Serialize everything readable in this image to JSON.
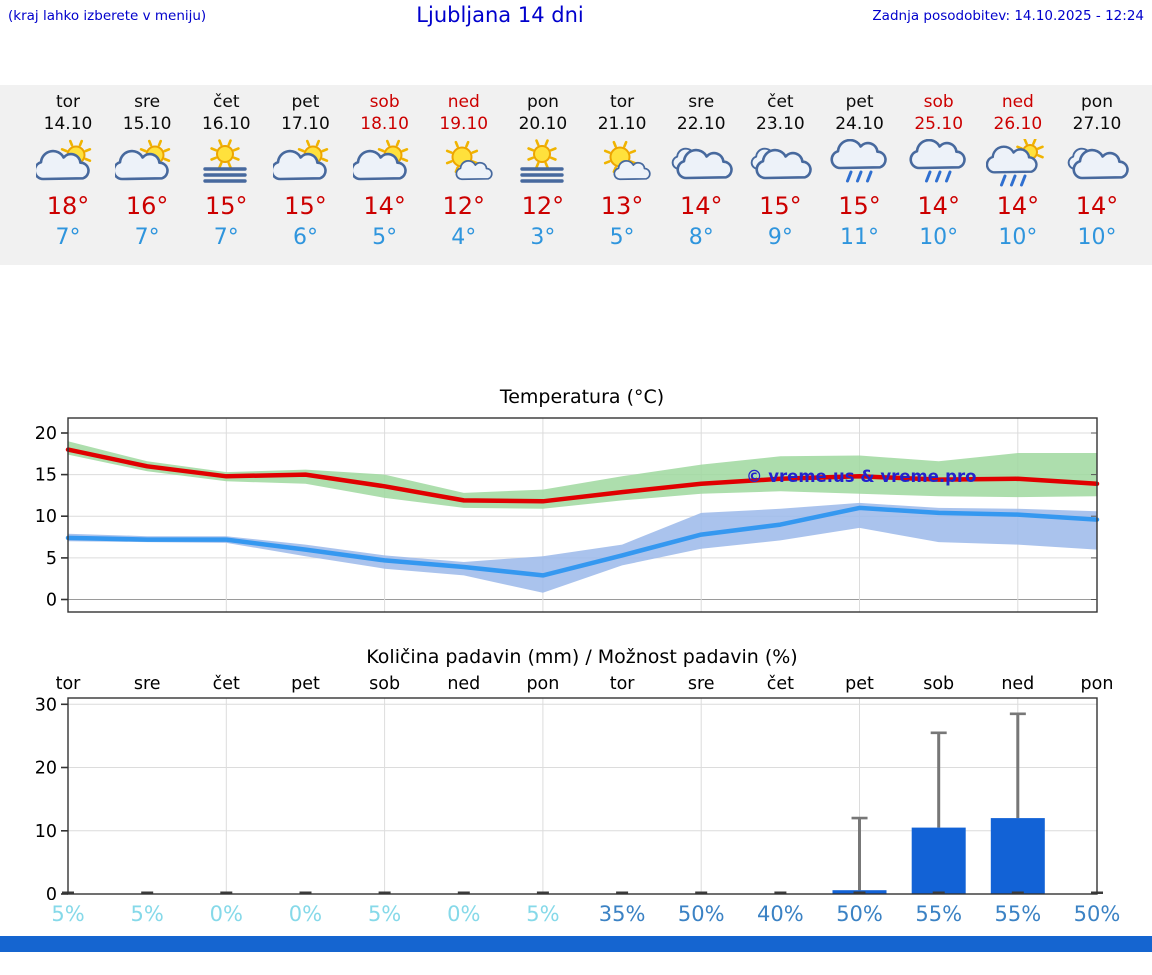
{
  "header": {
    "menu_note": "(kraj lahko izberete v meniju)",
    "title": "Ljubljana 14 dni",
    "last_update": "Zadnja posodobitev: 14.10.2025 - 12:24"
  },
  "watermark": "© vreme.us & vreme.pro",
  "colors": {
    "accent_blue": "#0000cc",
    "weekday_text": "#0a0a0a",
    "weekend_text": "#cc0000",
    "temp_high": "#cc0000",
    "temp_low": "#2f95dd",
    "strip_bg": "#f1f1f1",
    "max_line": "#e00000",
    "max_band": "#9fd89f",
    "min_line": "#3598f0",
    "min_band": "#9bb9ea",
    "bar_blue": "#1262d6",
    "whisker": "#777777",
    "prob_low": "#86d9e9",
    "prob_high": "#3b82c4",
    "footer_bar": "#1565d0",
    "watermark_blue": "#2323cc"
  },
  "forecast": {
    "days": [
      {
        "day": "tor",
        "date": "14.10",
        "weekend": false,
        "icon": "sun-cloud",
        "high": "18°",
        "low": "7°"
      },
      {
        "day": "sre",
        "date": "15.10",
        "weekend": false,
        "icon": "sun-cloud",
        "high": "16°",
        "low": "7°"
      },
      {
        "day": "čet",
        "date": "16.10",
        "weekend": false,
        "icon": "fog-sun",
        "high": "15°",
        "low": "7°"
      },
      {
        "day": "pet",
        "date": "17.10",
        "weekend": false,
        "icon": "sun-cloud",
        "high": "15°",
        "low": "6°"
      },
      {
        "day": "sob",
        "date": "18.10",
        "weekend": true,
        "icon": "sun-cloud",
        "high": "14°",
        "low": "5°"
      },
      {
        "day": "ned",
        "date": "19.10",
        "weekend": true,
        "icon": "sun-small-cloud",
        "high": "12°",
        "low": "4°"
      },
      {
        "day": "pon",
        "date": "20.10",
        "weekend": false,
        "icon": "fog-sun",
        "high": "12°",
        "low": "3°"
      },
      {
        "day": "tor",
        "date": "21.10",
        "weekend": false,
        "icon": "sun-small-cloud",
        "high": "13°",
        "low": "5°"
      },
      {
        "day": "sre",
        "date": "22.10",
        "weekend": false,
        "icon": "cloud",
        "high": "14°",
        "low": "8°"
      },
      {
        "day": "čet",
        "date": "23.10",
        "weekend": false,
        "icon": "cloud",
        "high": "15°",
        "low": "9°"
      },
      {
        "day": "pet",
        "date": "24.10",
        "weekend": false,
        "icon": "rain",
        "high": "15°",
        "low": "11°"
      },
      {
        "day": "sob",
        "date": "25.10",
        "weekend": true,
        "icon": "rain",
        "high": "14°",
        "low": "10°"
      },
      {
        "day": "ned",
        "date": "26.10",
        "weekend": true,
        "icon": "sun-rain",
        "high": "14°",
        "low": "10°"
      },
      {
        "day": "pon",
        "date": "27.10",
        "weekend": false,
        "icon": "cloud",
        "high": "14°",
        "low": "10°"
      }
    ]
  },
  "chart_data": [
    {
      "type": "line",
      "title": "Temperatura (°C)",
      "x": [
        "tor 14.10",
        "sre 15.10",
        "čet 16.10",
        "pet 17.10",
        "sob 18.10",
        "ned 19.10",
        "pon 20.10",
        "tor 21.10",
        "sre 22.10",
        "čet 23.10",
        "pet 24.10",
        "sob 25.10",
        "ned 26.10",
        "pon 27.10"
      ],
      "ylim": [
        -1.5,
        21.8
      ],
      "yticks": [
        0,
        5,
        10,
        15,
        20
      ],
      "grid": true,
      "legend": "none",
      "series": [
        {
          "name": "max temperature",
          "color_key": "max_line",
          "values": [
            18,
            16,
            14.8,
            15,
            13.6,
            11.9,
            11.8,
            12.9,
            13.9,
            14.5,
            14.8,
            14.4,
            14.5,
            13.9
          ]
        },
        {
          "name": "min temperature",
          "color_key": "min_line",
          "values": [
            7.4,
            7.2,
            7.2,
            6,
            4.7,
            3.9,
            2.9,
            5.3,
            7.8,
            9,
            11,
            10.4,
            10.2,
            9.6
          ]
        }
      ],
      "bands": [
        {
          "name": "max temperature range",
          "color_key": "max_band",
          "upper": [
            19,
            16.6,
            15.3,
            15.6,
            15,
            12.8,
            13.2,
            14.8,
            16.2,
            17.2,
            17.3,
            16.6,
            17.6,
            17.6
          ],
          "lower": [
            17.4,
            15.4,
            14.2,
            13.9,
            12.2,
            11,
            10.9,
            11.9,
            12.7,
            13,
            12.7,
            12.4,
            12.3,
            12.4
          ]
        },
        {
          "name": "min temperature range",
          "color_key": "min_band",
          "upper": [
            7.9,
            7.6,
            7.6,
            6.6,
            5.3,
            4.5,
            5.2,
            6.6,
            10.4,
            10.9,
            11.6,
            11,
            10.9,
            10.6
          ],
          "lower": [
            7,
            6.9,
            6.8,
            5.2,
            3.7,
            2.9,
            0.8,
            4.1,
            6.1,
            7.1,
            8.6,
            6.9,
            6.6,
            6
          ]
        }
      ]
    },
    {
      "type": "bar",
      "title": "Količina padavin (mm) / Možnost padavin (%)",
      "categories": [
        "tor",
        "sre",
        "čet",
        "pet",
        "sob",
        "ned",
        "pon",
        "tor",
        "sre",
        "čet",
        "pet",
        "sob",
        "ned",
        "pon"
      ],
      "ylim": [
        0,
        31
      ],
      "yticks": [
        0,
        10,
        20,
        30
      ],
      "values": [
        0,
        0,
        0,
        0,
        0,
        0,
        0,
        0,
        0,
        0,
        0.6,
        10.5,
        12,
        0
      ],
      "whisker_max": [
        0,
        0,
        0,
        0,
        0,
        0,
        0,
        0,
        0,
        0,
        12,
        25.5,
        28.5,
        0
      ],
      "probabilities": [
        "5%",
        "5%",
        "0%",
        "0%",
        "5%",
        "0%",
        "5%",
        "35%",
        "50%",
        "40%",
        "50%",
        "55%",
        "55%",
        "50%"
      ]
    }
  ]
}
